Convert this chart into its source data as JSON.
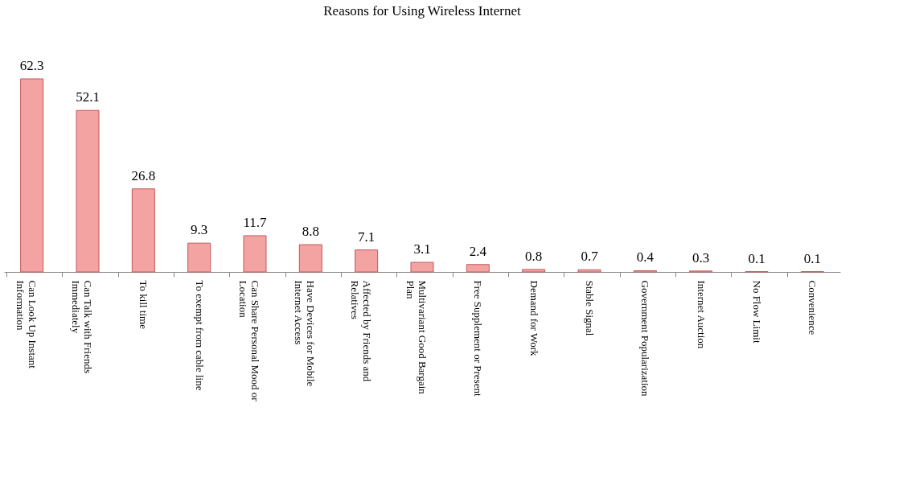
{
  "chart_data": {
    "type": "bar",
    "title": "Reasons for Using Wireless Internet",
    "categories": [
      "Can Look Up Instant Information",
      "Can Talk with Friends Immediately",
      "To kill time",
      "To exempt from cable line",
      "Can Share Personal Mood or Location",
      "Have Devices for Mobile Internet Access",
      "Affected by Friends and Relatives",
      "Multivariant Good Bargain Plan",
      "Free Supplement or Present",
      "Demand for Work",
      "Stable Signal",
      "Government Popularization",
      "Internet Auction",
      "No Flow Limit",
      "Convenience"
    ],
    "values": [
      62.3,
      52.1,
      26.8,
      9.3,
      11.7,
      8.8,
      7.1,
      3.1,
      2.4,
      0.8,
      0.7,
      0.4,
      0.3,
      0.1,
      0.1
    ],
    "color": "#f4a3a3",
    "data_labels": true,
    "grid": false
  }
}
